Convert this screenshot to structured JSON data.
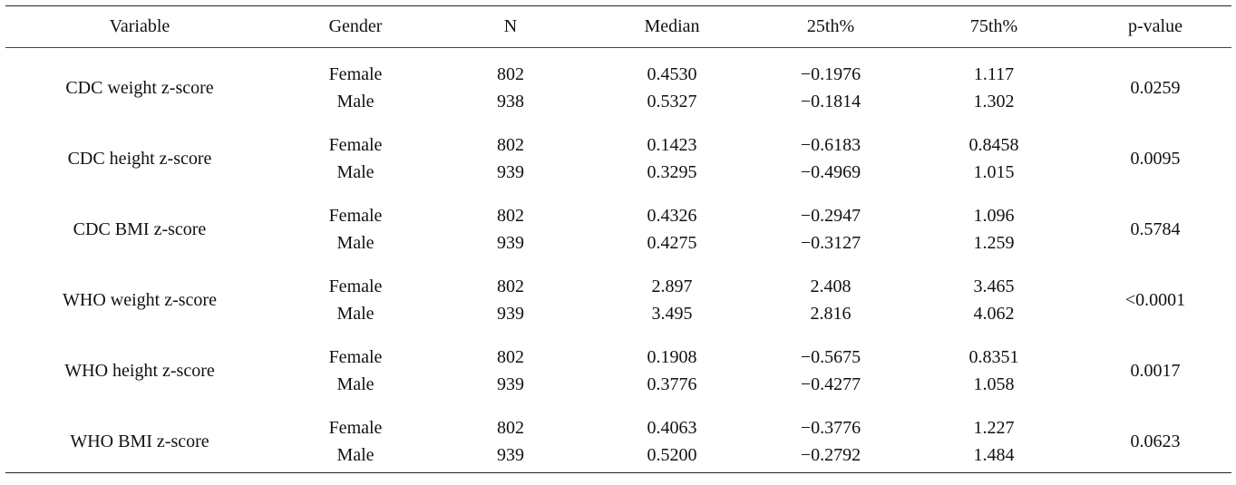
{
  "headers": {
    "variable": "Variable",
    "gender": "Gender",
    "n": "N",
    "median": "Median",
    "p25": "25th%",
    "p75": "75th%",
    "pvalue": "p-value"
  },
  "rows": [
    {
      "variable": "CDC weight z-score",
      "pvalue": "0.0259",
      "female": {
        "gender": "Female",
        "n": "802",
        "median": "0.4530",
        "p25": "−0.1976",
        "p75": "1.117"
      },
      "male": {
        "gender": "Male",
        "n": "938",
        "median": "0.5327",
        "p25": "−0.1814",
        "p75": "1.302"
      }
    },
    {
      "variable": "CDC height z-score",
      "pvalue": "0.0095",
      "female": {
        "gender": "Female",
        "n": "802",
        "median": "0.1423",
        "p25": "−0.6183",
        "p75": "0.8458"
      },
      "male": {
        "gender": "Male",
        "n": "939",
        "median": "0.3295",
        "p25": "−0.4969",
        "p75": "1.015"
      }
    },
    {
      "variable": "CDC BMI z-score",
      "pvalue": "0.5784",
      "female": {
        "gender": "Female",
        "n": "802",
        "median": "0.4326",
        "p25": "−0.2947",
        "p75": "1.096"
      },
      "male": {
        "gender": "Male",
        "n": "939",
        "median": "0.4275",
        "p25": "−0.3127",
        "p75": "1.259"
      }
    },
    {
      "variable": "WHO weight z-score",
      "pvalue": "<0.0001",
      "female": {
        "gender": "Female",
        "n": "802",
        "median": "2.897",
        "p25": "2.408",
        "p75": "3.465"
      },
      "male": {
        "gender": "Male",
        "n": "939",
        "median": "3.495",
        "p25": "2.816",
        "p75": "4.062"
      }
    },
    {
      "variable": "WHO height z-score",
      "pvalue": "0.0017",
      "female": {
        "gender": "Female",
        "n": "802",
        "median": "0.1908",
        "p25": "−0.5675",
        "p75": "0.8351"
      },
      "male": {
        "gender": "Male",
        "n": "939",
        "median": "0.3776",
        "p25": "−0.4277",
        "p75": "1.058"
      }
    },
    {
      "variable": "WHO BMI z-score",
      "pvalue": "0.0623",
      "female": {
        "gender": "Female",
        "n": "802",
        "median": "0.4063",
        "p25": "−0.3776",
        "p75": "1.227"
      },
      "male": {
        "gender": "Male",
        "n": "939",
        "median": "0.5200",
        "p25": "−0.2792",
        "p75": "1.484"
      }
    }
  ]
}
